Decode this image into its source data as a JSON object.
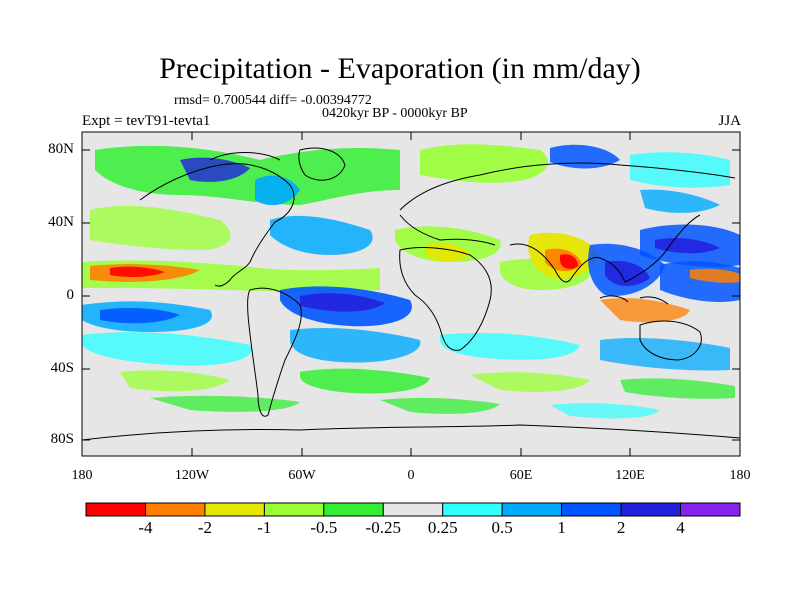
{
  "header": {
    "title": "Precipitation - Evaporation (in mm/day)",
    "stats": "rmsd= 0.700544  diff= -0.00394772",
    "period": "0420kyr BP - 0000kyr BP",
    "experiment": "Expt = tevT91-tevta1",
    "season": "JJA"
  },
  "axes": {
    "y_ticks": [
      "80N",
      "40N",
      "0",
      "40S",
      "80S"
    ],
    "x_ticks": [
      "180",
      "120W",
      "60W",
      "0",
      "60E",
      "120E",
      "180"
    ]
  },
  "colorbar": {
    "colors": [
      "#ff0000",
      "#ff8000",
      "#e6e600",
      "#99ff33",
      "#33ee33",
      "#e6e6e6",
      "#33ffff",
      "#00aaff",
      "#0055ff",
      "#2222dd",
      "#8822ee"
    ],
    "labels": [
      "-4",
      "-2",
      "-1",
      "-0.5",
      "-0.25",
      "0.25",
      "0.5",
      "1",
      "2",
      "4"
    ]
  },
  "colors": {
    "neutral": "#e6e6e6",
    "coast": "#000000"
  }
}
